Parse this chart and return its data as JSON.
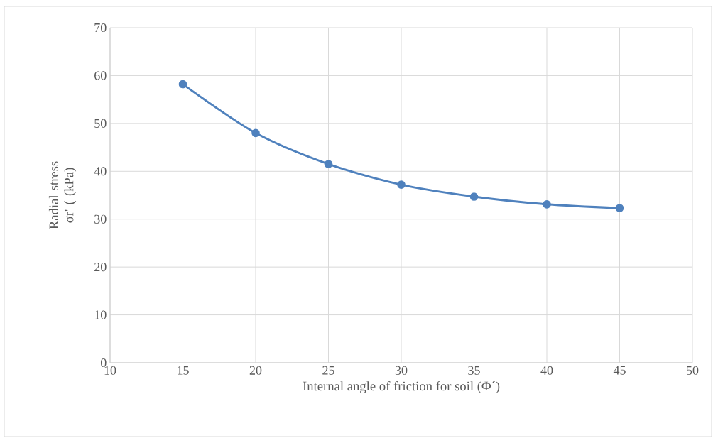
{
  "chart_data": {
    "type": "line",
    "xlabel": "Internal angle of friction for soil (Φ´)",
    "ylabel": "Radial stress σr' ( (kPa)",
    "x": [
      15,
      20,
      25,
      30,
      35,
      40,
      45
    ],
    "series": [
      {
        "color": "#4f81bd",
        "values": [
          58.2,
          48.0,
          41.5,
          37.2,
          34.7,
          33.1,
          32.3
        ]
      }
    ],
    "xlim": [
      10,
      50
    ],
    "xticks": [
      10,
      15,
      20,
      25,
      30,
      35,
      40,
      45,
      50
    ],
    "ylim": [
      0,
      70
    ],
    "yticks": [
      0,
      10,
      20,
      30,
      40,
      50,
      60,
      70
    ],
    "grid": true,
    "marker": "circle",
    "line_style": "solid"
  }
}
